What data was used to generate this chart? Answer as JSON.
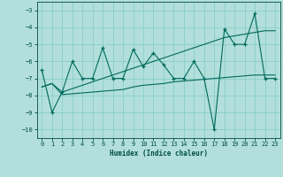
{
  "x": [
    0,
    1,
    2,
    3,
    4,
    5,
    6,
    7,
    8,
    9,
    10,
    11,
    12,
    13,
    14,
    15,
    16,
    17,
    18,
    19,
    20,
    21,
    22,
    23
  ],
  "y_main": [
    -6.5,
    -9.0,
    -7.8,
    -6.0,
    -7.0,
    -7.0,
    -5.2,
    -7.0,
    -7.0,
    -5.3,
    -6.3,
    -5.5,
    -6.2,
    -7.0,
    -7.0,
    -6.0,
    -7.0,
    -10.0,
    -4.1,
    -5.0,
    -5.0,
    -3.2,
    -7.0,
    -7.0
  ],
  "y_upper": [
    -7.5,
    -7.3,
    -7.8,
    -7.6,
    -7.4,
    -7.2,
    -7.0,
    -6.8,
    -6.6,
    -6.4,
    -6.2,
    -6.0,
    -5.8,
    -5.6,
    -5.4,
    -5.2,
    -5.0,
    -4.8,
    -4.6,
    -4.5,
    -4.4,
    -4.3,
    -4.2,
    -4.2
  ],
  "y_lower": [
    -7.5,
    -7.3,
    -7.95,
    -7.9,
    -7.85,
    -7.8,
    -7.75,
    -7.7,
    -7.65,
    -7.5,
    -7.4,
    -7.35,
    -7.3,
    -7.2,
    -7.15,
    -7.1,
    -7.05,
    -7.0,
    -6.95,
    -6.9,
    -6.85,
    -6.8,
    -6.8,
    -6.8
  ],
  "xlabel": "Humidex (Indice chaleur)",
  "background_color": "#b2dfdb",
  "grid_color": "#80cbc4",
  "line_color": "#00695c",
  "ylim": [
    -10.5,
    -2.5
  ],
  "xlim": [
    -0.5,
    23.5
  ],
  "yticks": [
    -3,
    -4,
    -5,
    -6,
    -7,
    -8,
    -9,
    -10
  ],
  "xticks": [
    0,
    1,
    2,
    3,
    4,
    5,
    6,
    7,
    8,
    9,
    10,
    11,
    12,
    13,
    14,
    15,
    16,
    17,
    18,
    19,
    20,
    21,
    22,
    23
  ]
}
